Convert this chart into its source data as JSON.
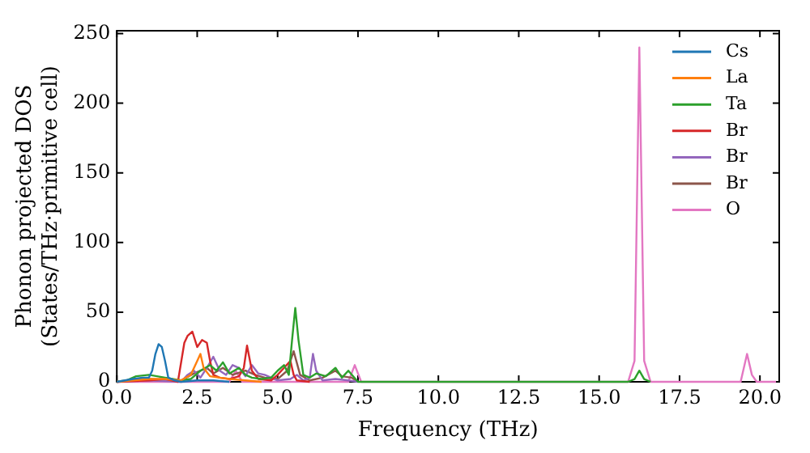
{
  "chart_data": {
    "type": "line",
    "xlabel": "Frequency (THz)",
    "ylabel": "Phonon projected DOS\n(States/THz·primitive cell)",
    "xlim": [
      0,
      20.6
    ],
    "ylim": [
      0,
      252
    ],
    "xticks": [
      {
        "value": 0,
        "label": "0.0"
      },
      {
        "value": 2.5,
        "label": "2.5"
      },
      {
        "value": 5,
        "label": "5.0"
      },
      {
        "value": 7.5,
        "label": "7.5"
      },
      {
        "value": 10,
        "label": "10.0"
      },
      {
        "value": 12.5,
        "label": "12.5"
      },
      {
        "value": 15,
        "label": "15.0"
      },
      {
        "value": 17.5,
        "label": "17.5"
      },
      {
        "value": 20,
        "label": "20.0"
      }
    ],
    "yticks": [
      0,
      50,
      100,
      150,
      200,
      250
    ],
    "grid": false,
    "legend": "top right",
    "marker": "none",
    "line_style": "solid",
    "series": [
      {
        "name": "Cs",
        "color": "#1f77b4",
        "x": [
          0,
          0.5,
          0.8,
          1.0,
          1.1,
          1.2,
          1.3,
          1.4,
          1.5,
          1.6,
          1.8,
          2.0,
          2.5,
          3.0,
          3.5
        ],
        "values": [
          0,
          2,
          3,
          3,
          8,
          20,
          27,
          25,
          15,
          3,
          1,
          0,
          1,
          1,
          0
        ]
      },
      {
        "name": "La",
        "color": "#ff7f0e",
        "x": [
          0,
          0.5,
          1,
          1.5,
          2.0,
          2.3,
          2.5,
          2.6,
          2.7,
          2.9,
          3.2,
          3.5,
          4,
          4.5
        ],
        "values": [
          0,
          1,
          2,
          2,
          1,
          5,
          15,
          20,
          10,
          4,
          3,
          2,
          1,
          0
        ]
      },
      {
        "name": "Ta",
        "color": "#2ca02c",
        "x": [
          0,
          0.3,
          0.6,
          1.0,
          1.5,
          2.0,
          2.3,
          2.6,
          2.9,
          3.1,
          3.3,
          3.5,
          3.8,
          4.0,
          4.2,
          4.5,
          4.8,
          5.0,
          5.2,
          5.35,
          5.45,
          5.55,
          5.65,
          5.8,
          6.0,
          6.2,
          6.5,
          6.8,
          7.0,
          7.2,
          7.5,
          15.9,
          16.1,
          16.25,
          16.4,
          16.6
        ],
        "values": [
          0,
          1,
          4,
          5,
          3,
          1,
          2,
          8,
          12,
          8,
          14,
          6,
          10,
          5,
          3,
          2,
          3,
          8,
          12,
          5,
          30,
          53,
          30,
          5,
          3,
          6,
          4,
          10,
          3,
          8,
          0,
          0,
          2,
          8,
          2,
          0
        ]
      },
      {
        "name": "Br",
        "color": "#d62728",
        "x": [
          0,
          1,
          1.5,
          1.9,
          2.1,
          2.2,
          2.35,
          2.5,
          2.65,
          2.8,
          2.9,
          3.0,
          3.2,
          3.5,
          3.8,
          3.95,
          4.05,
          4.2,
          4.4,
          4.8,
          5.0,
          5.2,
          5.4,
          5.5,
          5.6,
          6
        ],
        "values": [
          0,
          1,
          2,
          0,
          28,
          33,
          36,
          25,
          30,
          28,
          15,
          5,
          3,
          2,
          4,
          10,
          26,
          8,
          2,
          1,
          5,
          10,
          15,
          5,
          1,
          0
        ]
      },
      {
        "name": "Br",
        "color": "#9467bd",
        "x": [
          0,
          1,
          2,
          2.2,
          2.4,
          2.6,
          2.8,
          3.0,
          3.2,
          3.4,
          3.6,
          3.8,
          4.0,
          4.2,
          4.4,
          4.6,
          5.0,
          5.4,
          5.6,
          5.8,
          6.0,
          6.1,
          6.2,
          6.4,
          6.8,
          7.2,
          7.5
        ],
        "values": [
          0,
          1,
          0,
          5,
          8,
          3,
          10,
          18,
          8,
          5,
          12,
          10,
          4,
          12,
          6,
          5,
          1,
          2,
          5,
          1,
          3,
          20,
          8,
          1,
          2,
          1,
          0
        ]
      },
      {
        "name": "Br",
        "color": "#8c564b",
        "x": [
          0,
          1,
          2,
          2.4,
          2.8,
          3.0,
          3.3,
          3.6,
          4.0,
          4.3,
          4.6,
          5.0,
          5.3,
          5.5,
          5.7,
          6.0,
          6.4,
          6.8,
          7.0,
          7.3,
          7.5
        ],
        "values": [
          0,
          2,
          1,
          6,
          10,
          6,
          10,
          5,
          8,
          5,
          3,
          2,
          8,
          22,
          5,
          1,
          3,
          8,
          4,
          3,
          0
        ]
      },
      {
        "name": "O",
        "color": "#e377c2",
        "x": [
          0,
          2,
          3.5,
          3.7,
          3.9,
          5,
          7.2,
          7.4,
          7.6,
          8,
          15.9,
          16.1,
          16.25,
          16.4,
          16.6,
          19.4,
          19.6,
          19.75,
          19.9,
          20.5
        ],
        "values": [
          0,
          0,
          0,
          8,
          0,
          0,
          0,
          12,
          0,
          0,
          0,
          15,
          240,
          15,
          0,
          0,
          20,
          5,
          0,
          0
        ]
      }
    ]
  }
}
